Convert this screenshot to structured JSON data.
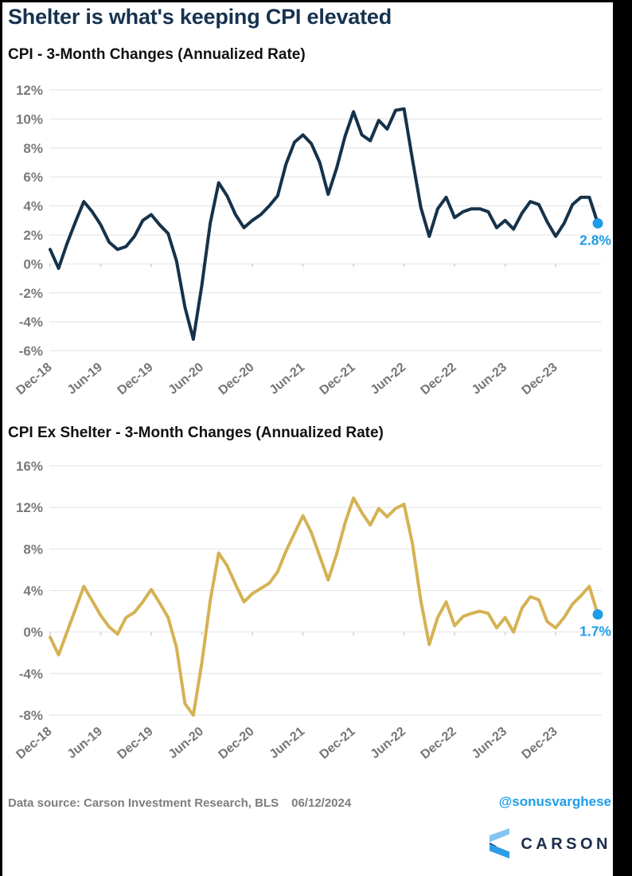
{
  "header": {
    "title": "Shelter is what's keeping CPI elevated"
  },
  "colors": {
    "title_navy": "#16324f",
    "line_navy": "#16324a",
    "line_gold": "#d5b253",
    "accent_blue": "#1e9ce8",
    "axis_gray": "#7a7a7a",
    "grid_gray": "#e2e2e2",
    "frame_black": "#000000"
  },
  "chart_data": [
    {
      "type": "line",
      "title": "CPI - 3-Month Changes (Annualized Rate)",
      "series_name": "CPI 3-month annualized change",
      "categories": [
        "Dec-18",
        "Jan-19",
        "Feb-19",
        "Mar-19",
        "Apr-19",
        "May-19",
        "Jun-19",
        "Jul-19",
        "Aug-19",
        "Sep-19",
        "Oct-19",
        "Nov-19",
        "Dec-19",
        "Jan-20",
        "Feb-20",
        "Mar-20",
        "Apr-20",
        "May-20",
        "Jun-20",
        "Jul-20",
        "Aug-20",
        "Sep-20",
        "Oct-20",
        "Nov-20",
        "Dec-20",
        "Jan-21",
        "Feb-21",
        "Mar-21",
        "Apr-21",
        "May-21",
        "Jun-21",
        "Jul-21",
        "Aug-21",
        "Sep-21",
        "Oct-21",
        "Nov-21",
        "Dec-21",
        "Jan-22",
        "Feb-22",
        "Mar-22",
        "Apr-22",
        "May-22",
        "Jun-22",
        "Jul-22",
        "Aug-22",
        "Sep-22",
        "Oct-22",
        "Nov-22",
        "Dec-22",
        "Jan-23",
        "Feb-23",
        "Mar-23",
        "Apr-23",
        "May-23",
        "Jun-23",
        "Jul-23",
        "Aug-23",
        "Sep-23",
        "Oct-23",
        "Nov-23",
        "Dec-23",
        "Jan-24",
        "Feb-24",
        "Mar-24",
        "Apr-24",
        "May-24"
      ],
      "values": [
        1.0,
        -0.3,
        1.4,
        2.9,
        4.3,
        3.6,
        2.7,
        1.5,
        1.0,
        1.2,
        1.9,
        3.0,
        3.4,
        2.7,
        2.1,
        0.2,
        -3.0,
        -5.2,
        -1.5,
        2.8,
        5.6,
        4.7,
        3.4,
        2.5,
        3.0,
        3.4,
        4.0,
        4.7,
        6.9,
        8.4,
        8.9,
        8.3,
        7.0,
        4.8,
        6.6,
        8.8,
        10.5,
        8.9,
        8.5,
        9.9,
        9.3,
        10.6,
        10.7,
        7.2,
        3.9,
        1.9,
        3.8,
        4.6,
        3.2,
        3.6,
        3.8,
        3.8,
        3.6,
        2.5,
        3.0,
        2.4,
        3.5,
        4.3,
        4.1,
        2.9,
        1.9,
        2.8,
        4.1,
        4.6,
        4.6,
        2.8
      ],
      "yticks": [
        12,
        10,
        8,
        6,
        4,
        2,
        0,
        -2,
        -4,
        -6
      ],
      "ylim": [
        -6,
        12
      ],
      "xtick_every": 6,
      "xtick_labels": [
        "Dec-18",
        "Jun-19",
        "Dec-19",
        "Jun-20",
        "Dec-20",
        "Jun-21",
        "Dec-21",
        "Jun-22",
        "Dec-22",
        "Jun-23",
        "Dec-23"
      ],
      "grid": true,
      "legend": "none",
      "line_color": "#16324a",
      "end_label": "2.8%",
      "end_dot_color": "#1e9ce8"
    },
    {
      "type": "line",
      "title": "CPI Ex Shelter - 3-Month Changes (Annualized Rate)",
      "series_name": "CPI ex-shelter 3-month annualized change",
      "categories": [
        "Dec-18",
        "Jan-19",
        "Feb-19",
        "Mar-19",
        "Apr-19",
        "May-19",
        "Jun-19",
        "Jul-19",
        "Aug-19",
        "Sep-19",
        "Oct-19",
        "Nov-19",
        "Dec-19",
        "Jan-20",
        "Feb-20",
        "Mar-20",
        "Apr-20",
        "May-20",
        "Jun-20",
        "Jul-20",
        "Aug-20",
        "Sep-20",
        "Oct-20",
        "Nov-20",
        "Dec-20",
        "Jan-21",
        "Feb-21",
        "Mar-21",
        "Apr-21",
        "May-21",
        "Jun-21",
        "Jul-21",
        "Aug-21",
        "Sep-21",
        "Oct-21",
        "Nov-21",
        "Dec-21",
        "Jan-22",
        "Feb-22",
        "Mar-22",
        "Apr-22",
        "May-22",
        "Jun-22",
        "Jul-22",
        "Aug-22",
        "Sep-22",
        "Oct-22",
        "Nov-22",
        "Dec-22",
        "Jan-23",
        "Feb-23",
        "Mar-23",
        "Apr-23",
        "May-23",
        "Jun-23",
        "Jul-23",
        "Aug-23",
        "Sep-23",
        "Oct-23",
        "Nov-23",
        "Dec-23",
        "Jan-24",
        "Feb-24",
        "Mar-24",
        "Apr-24",
        "May-24"
      ],
      "values": [
        -0.5,
        -2.2,
        0.0,
        2.2,
        4.4,
        3.0,
        1.6,
        0.5,
        -0.2,
        1.4,
        1.9,
        2.9,
        4.1,
        2.8,
        1.4,
        -1.5,
        -6.9,
        -8.0,
        -3.0,
        3.0,
        7.6,
        6.4,
        4.6,
        2.9,
        3.7,
        4.2,
        4.7,
        5.8,
        7.8,
        9.5,
        11.2,
        9.6,
        7.3,
        5.0,
        7.5,
        10.5,
        12.9,
        11.5,
        10.3,
        11.9,
        11.1,
        11.9,
        12.3,
        8.5,
        3.0,
        -1.2,
        1.4,
        2.9,
        0.6,
        1.5,
        1.8,
        2.0,
        1.8,
        0.4,
        1.4,
        0.0,
        2.3,
        3.4,
        3.1,
        1.0,
        0.4,
        1.4,
        2.7,
        3.5,
        4.4,
        1.7
      ],
      "yticks": [
        16,
        12,
        8,
        4,
        0,
        -4,
        -8
      ],
      "ylim": [
        -8,
        16
      ],
      "xtick_every": 6,
      "xtick_labels": [
        "Dec-18",
        "Jun-19",
        "Dec-19",
        "Jun-20",
        "Dec-20",
        "Jun-21",
        "Dec-21",
        "Jun-22",
        "Dec-22",
        "Jun-23",
        "Dec-23"
      ],
      "grid": true,
      "legend": "none",
      "line_color": "#d5b253",
      "end_label": "1.7%",
      "end_dot_color": "#1e9ce8"
    }
  ],
  "footer": {
    "source": "Data source: Carson Investment Research, BLS",
    "date": "06/12/2024",
    "handle": "@sonusvarghese",
    "brand": "CARSON"
  }
}
